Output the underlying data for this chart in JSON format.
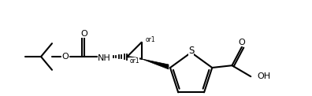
{
  "background_color": "#ffffff",
  "line_color": "#000000",
  "line_width": 1.5,
  "bond_width": 1.5,
  "fig_width": 3.96,
  "fig_height": 1.22,
  "dpi": 100,
  "font_size": 7.5,
  "label_O1": "O",
  "label_O2": "O",
  "label_O3": "O",
  "label_OH": "OH",
  "label_NH": "NH",
  "label_S": "S",
  "label_or1a": "or1",
  "label_or1b": "or1"
}
